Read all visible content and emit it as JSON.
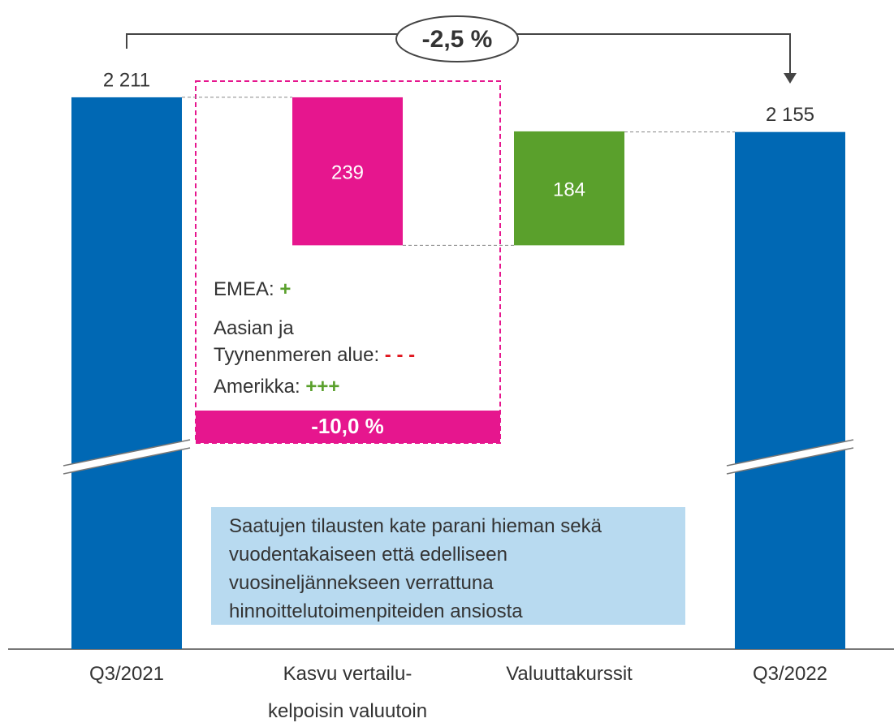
{
  "chart_data": {
    "type": "waterfall",
    "categories": [
      "Q3/2021",
      "Kasvu vertailu-\nkelpoisin valuutoin",
      "Valuuttakurssit",
      "Q3/2022"
    ],
    "values": [
      2211,
      -239,
      184,
      2155
    ],
    "value_labels": [
      "2 211",
      "239",
      "184",
      "2 155"
    ],
    "measure": [
      "total",
      "relative",
      "relative",
      "total"
    ],
    "colors": [
      "#0068b4",
      "#e6168e",
      "#5aa02c",
      "#0068b4"
    ],
    "ylim": [
      1320,
      2300
    ],
    "axis_break": true,
    "change_annotation": "-2,5 %",
    "regions": [
      {
        "label": "EMEA:",
        "sign": "+",
        "sign_color": "#5aa02c"
      },
      {
        "label": "Aasian ja\nTyynenmeren alue:",
        "sign": "- - -",
        "sign_color": "#e0161e"
      },
      {
        "label": "Amerikka:",
        "sign": "+++",
        "sign_color": "#5aa02c"
      }
    ],
    "region_change": "-10,0 %",
    "note": [
      "Saatujen tilausten kate parani hieman sekä",
      "vuodentakaiseen että edelliseen",
      "vuosineljännekseen verrattuna",
      "hinnoittelutoimenpiteiden ansiosta"
    ]
  }
}
